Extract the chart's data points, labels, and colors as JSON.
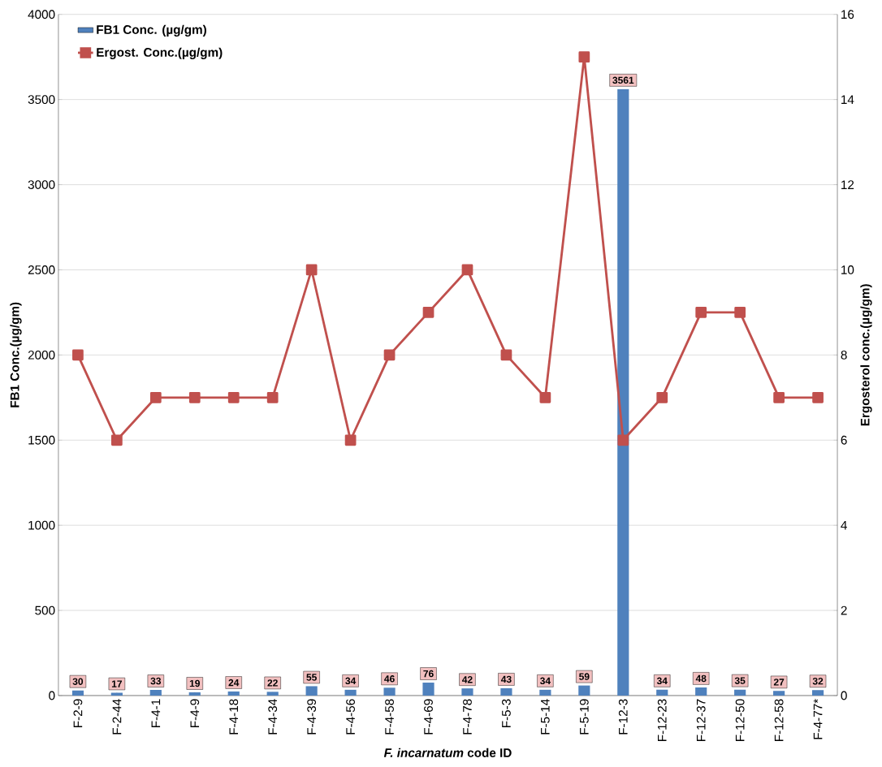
{
  "chart_data": {
    "type": "bar",
    "xlabel": "*F. incarnatum* code ID",
    "ylabel": "FB1 Conc.(µg/gm)",
    "y2label": "Ergosterol conc.(µg/gm)",
    "categories": [
      "F-2-9",
      "F-2-44",
      "F-4-1",
      "F-4-9",
      "F-4-18",
      "F-4-34",
      "F-4-39",
      "F-4-56",
      "F-4-58",
      "F-4-69",
      "F-4-78",
      "F-5-3",
      "F-5-14",
      "F-5-19",
      "F-12-3",
      "F-12-23",
      "F-12-37",
      "F-12-50",
      "F-12-58",
      "F-4-77*"
    ],
    "series": [
      {
        "name": "FB1 Conc. (µg/gm)",
        "color": "#4f81bd",
        "values": [
          30,
          17,
          33,
          19,
          24,
          22,
          55,
          34,
          46,
          76,
          42,
          43,
          34,
          59,
          3561,
          34,
          48,
          35,
          27,
          32
        ],
        "value_labels": [
          "30",
          "17",
          "33",
          "19",
          "24",
          "22",
          "55",
          "34",
          "46",
          "76",
          "42",
          "43",
          "34",
          "59",
          "3561",
          "34",
          "48",
          "35",
          "27",
          "32"
        ]
      },
      {
        "name": "Ergost. Conc.(µg/gm)",
        "type": "line",
        "axis": "y2",
        "color": "#c0504d",
        "marker": "square",
        "line_style": "solid",
        "values": [
          8,
          6,
          7,
          7,
          7,
          7,
          10,
          6,
          8,
          9,
          10,
          8,
          7,
          15,
          6,
          7,
          9,
          9,
          7,
          7
        ]
      }
    ],
    "ylim": [
      0,
      4000
    ],
    "yticks": [
      0,
      500,
      1000,
      1500,
      2000,
      2500,
      3000,
      3500,
      4000
    ],
    "y2lim": [
      0,
      16
    ],
    "y2ticks": [
      0,
      2,
      4,
      6,
      8,
      10,
      12,
      14,
      16
    ],
    "grid": "y",
    "legend": "top left"
  }
}
